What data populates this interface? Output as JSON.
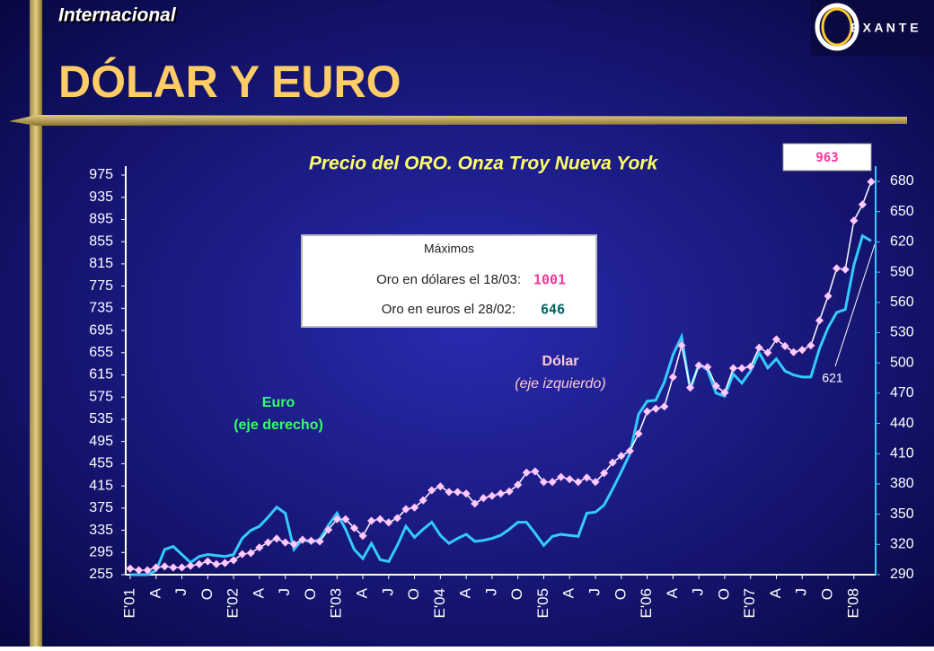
{
  "header": {
    "section": "Internacional",
    "title": "DÓLAR Y EURO",
    "logo": "E X A N T E"
  },
  "chart_data": {
    "type": "line",
    "title": "Precio del ORO. Onza Troy  Nueva York",
    "categories": [
      "E'01",
      null,
      null,
      "A",
      null,
      null,
      "J",
      null,
      null,
      "O",
      null,
      null,
      "E'02",
      null,
      null,
      "A",
      null,
      null,
      "J",
      null,
      null,
      "O",
      null,
      null,
      "E'03",
      null,
      null,
      "A",
      null,
      null,
      "J",
      null,
      null,
      "O",
      null,
      null,
      "E'04",
      null,
      null,
      "A",
      null,
      null,
      "J",
      null,
      null,
      "O",
      null,
      null,
      "E'05",
      null,
      null,
      "A",
      null,
      null,
      "J",
      null,
      null,
      "O",
      null,
      null,
      "E'06",
      null,
      null,
      "A",
      null,
      null,
      "J",
      null,
      null,
      "O",
      null,
      null,
      "E'07",
      null,
      null,
      "A",
      null,
      null,
      "J",
      null,
      null,
      "O",
      null,
      null,
      "E'08",
      null,
      null
    ],
    "series": [
      {
        "name": "Dólar",
        "note": "(eje izquierdo)",
        "color": "#ffffff",
        "marker_color": "#ffccff",
        "axis": "y",
        "values": [
          266,
          263,
          263,
          268,
          270,
          268,
          268,
          271,
          274,
          279,
          274,
          276,
          281,
          292,
          294,
          304,
          313,
          320,
          313,
          310,
          318,
          316,
          315,
          336,
          355,
          355,
          339,
          325,
          352,
          355,
          349,
          357,
          373,
          376,
          389,
          407,
          414,
          404,
          404,
          401,
          383,
          393,
          397,
          401,
          405,
          417,
          439,
          441,
          422,
          422,
          431,
          427,
          422,
          430,
          422,
          438,
          457,
          469,
          478,
          509,
          549,
          554,
          558,
          611,
          668,
          592,
          632,
          629,
          595,
          583,
          627,
          627,
          630,
          664,
          655,
          679,
          667,
          656,
          660,
          668,
          713,
          757,
          807,
          805,
          893,
          922,
          963
        ]
      },
      {
        "name": "Euro",
        "note": "(eje derecho)",
        "color": "#33ccff",
        "axis": "y2",
        "values": [
          290,
          290,
          290,
          294,
          315,
          318,
          310,
          302,
          308,
          310,
          309,
          308,
          310,
          326,
          334,
          338,
          347,
          357,
          351,
          315,
          325,
          322,
          325,
          339,
          351,
          335,
          315,
          306,
          321,
          305,
          303,
          319,
          338,
          327,
          335,
          342,
          329,
          321,
          326,
          330,
          323,
          324,
          326,
          329,
          335,
          342,
          342,
          331,
          319,
          328,
          330,
          329,
          328,
          351,
          352,
          359,
          375,
          392,
          410,
          449,
          462,
          463,
          481,
          508,
          526,
          473,
          499,
          493,
          470,
          467,
          489,
          480,
          492,
          510,
          495,
          504,
          492,
          488,
          486,
          486,
          514,
          535,
          550,
          553,
          597,
          626,
          621
        ]
      }
    ],
    "ylim": [
      255,
      975
    ],
    "yticks": [
      255,
      295,
      335,
      375,
      415,
      455,
      495,
      535,
      575,
      615,
      655,
      695,
      735,
      775,
      815,
      855,
      895,
      935,
      975
    ],
    "y2lim": [
      290,
      680
    ],
    "y2ticks": [
      290,
      320,
      350,
      380,
      410,
      440,
      470,
      500,
      530,
      560,
      590,
      620,
      650,
      680
    ],
    "max_box": {
      "title": "Máximos",
      "rows": [
        {
          "label": "Oro en dólares el 18/03:",
          "value": 1001
        },
        {
          "label": "Oro en euros el 28/02:",
          "value": 646
        }
      ]
    }
  }
}
